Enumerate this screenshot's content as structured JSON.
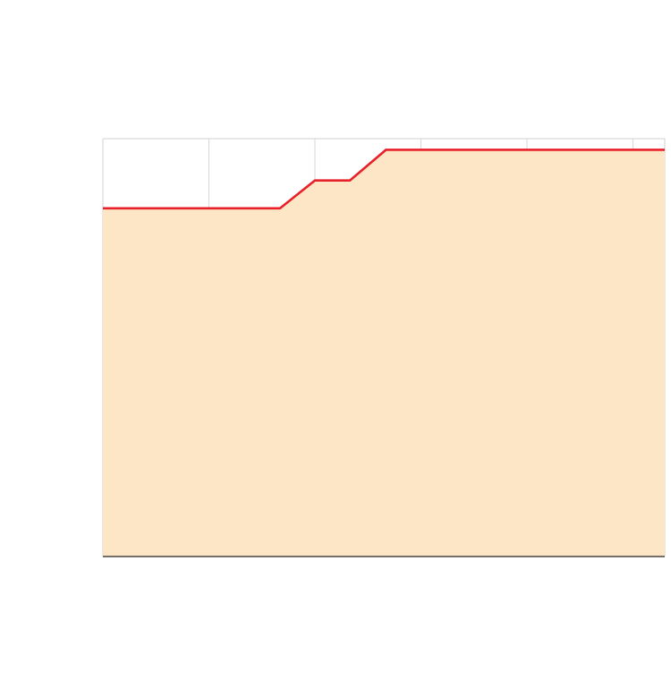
{
  "chart_data": {
    "type": "area",
    "x": [
      0,
      1,
      1.67,
      2,
      2.33,
      2.67,
      3,
      4,
      5.3
    ],
    "series": [
      {
        "values": [
          2.5,
          2.5,
          2.5,
          2.7,
          2.7,
          2.92,
          2.92,
          2.92,
          2.92
        ]
      }
    ],
    "xlim": [
      0,
      5.3
    ],
    "ylim": [
      0,
      3
    ],
    "x_gridlines": [
      1,
      2,
      3,
      4,
      5
    ],
    "y_gridlines": [
      1,
      2
    ],
    "grid": true,
    "colors": {
      "line": "#e8202a",
      "fill": "#fde6c5",
      "grid": "#d0d0d0",
      "axis": "#222222"
    }
  }
}
